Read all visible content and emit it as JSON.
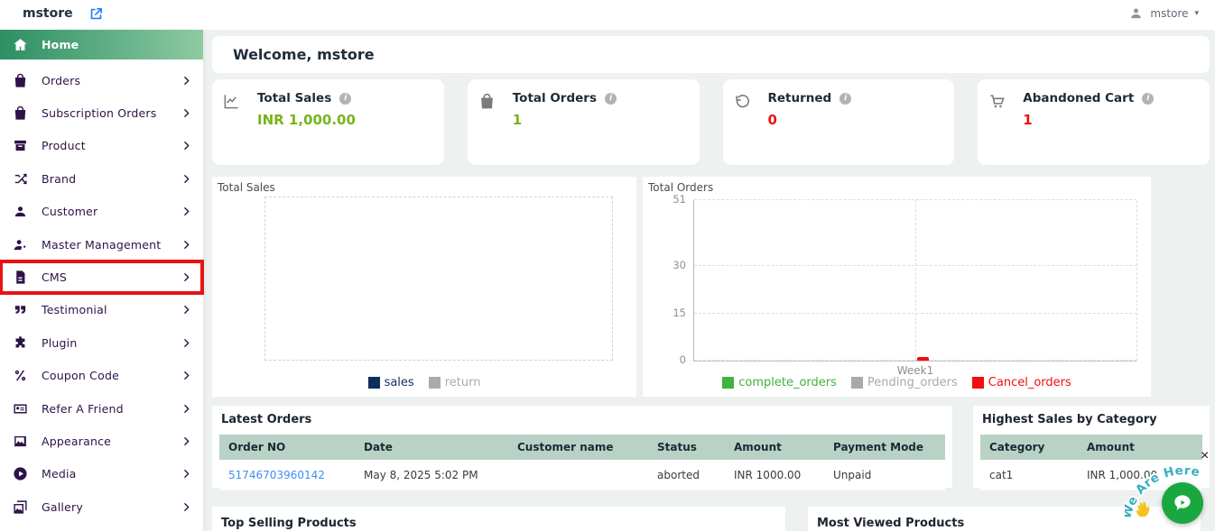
{
  "topbar": {
    "logo_text": "mstore",
    "user_label": "mstore",
    "caret": "▾"
  },
  "sidebar": {
    "items": [
      {
        "label": "Home",
        "icon": "home-icon",
        "active": true
      },
      {
        "label": "Orders",
        "icon": "shopping-bag-icon"
      },
      {
        "label": "Subscription Orders",
        "icon": "shopping-bag-icon"
      },
      {
        "label": "Product",
        "icon": "archive-box-icon"
      },
      {
        "label": "Brand",
        "icon": "shuffle-icon"
      },
      {
        "label": "Customer",
        "icon": "person-icon"
      },
      {
        "label": "Master Management",
        "icon": "person-gear-icon"
      },
      {
        "label": "CMS",
        "icon": "document-icon",
        "highlighted": true
      },
      {
        "label": "Testimonial",
        "icon": "quote-icon"
      },
      {
        "label": "Plugin",
        "icon": "puzzle-icon"
      },
      {
        "label": "Coupon Code",
        "icon": "percent-icon"
      },
      {
        "label": "Refer A Friend",
        "icon": "id-card-icon"
      },
      {
        "label": "Appearance",
        "icon": "image-icon"
      },
      {
        "label": "Media",
        "icon": "play-circle-icon"
      },
      {
        "label": "Gallery",
        "icon": "gallery-icon"
      }
    ]
  },
  "welcome_title": "Welcome, mstore",
  "stat_cards": [
    {
      "label": "Total Sales",
      "value": "INR 1,000.00",
      "icon": "line-chart-icon",
      "value_color": "#76b51b"
    },
    {
      "label": "Total Orders",
      "value": "1",
      "icon": "shopping-bag-icon",
      "value_color": "#76b51b"
    },
    {
      "label": "Returned",
      "value": "0",
      "icon": "rotate-ccw-icon",
      "value_color": "#e81414"
    },
    {
      "label": "Abandoned Cart",
      "value": "1",
      "icon": "cart-icon",
      "value_color": "#e81414"
    }
  ],
  "chart_data": [
    {
      "type": "bar",
      "title": "Total Sales",
      "categories": [],
      "series": [
        {
          "name": "sales",
          "color": "#0d2f5a",
          "values": []
        },
        {
          "name": "return",
          "color": "#ababab",
          "values": [],
          "disabled": true
        }
      ],
      "plot_state": "empty",
      "legend_position": "bottom"
    },
    {
      "type": "bar",
      "title": "Total Orders",
      "categories": [
        "Week1"
      ],
      "yticks": [
        0,
        15,
        30,
        51
      ],
      "ylim": [
        0,
        51
      ],
      "series": [
        {
          "name": "complete_orders",
          "color": "#3fb33c",
          "values": [
            0
          ]
        },
        {
          "name": "Pending_orders",
          "color": "#a9a9a9",
          "values": [
            0
          ]
        },
        {
          "name": "Cancel_orders",
          "color": "#f10f0f",
          "values": [
            1
          ]
        }
      ],
      "grid": true,
      "legend_position": "bottom"
    }
  ],
  "latest_orders": {
    "title": "Latest Orders",
    "columns": [
      "Order NO",
      "Date",
      "Customer name",
      "Status",
      "Amount",
      "Payment Mode"
    ],
    "rows": [
      [
        "51746703960142",
        "May 8, 2025 5:02 PM",
        "",
        "aborted",
        "INR 1000.00",
        "Unpaid"
      ]
    ]
  },
  "highest_sales": {
    "title": "Highest Sales by Category",
    "columns": [
      "Category",
      "Amount"
    ],
    "rows": [
      [
        "cat1",
        "INR 1,000.00"
      ]
    ]
  },
  "bottom": {
    "top_selling_title": "Top Selling Products",
    "most_viewed_title": "Most Viewed Products"
  },
  "chat_widget": {
    "arc_text": "We Are Here",
    "close_label": "×",
    "icons": [
      "wave-hand-icon",
      "chat-bubble-icon"
    ]
  },
  "colors": {
    "active_gradient_start": "#2c8f63",
    "active_gradient_end": "#8ecaa2",
    "positive_value": "#76b51b",
    "negative_value": "#e81414",
    "table_header_bg": "#b9d2c6",
    "link": "#3f8ef5",
    "highlight_box": "#e81313",
    "chat_button": "#19a83f",
    "arc_text_color": "#35aec2"
  }
}
